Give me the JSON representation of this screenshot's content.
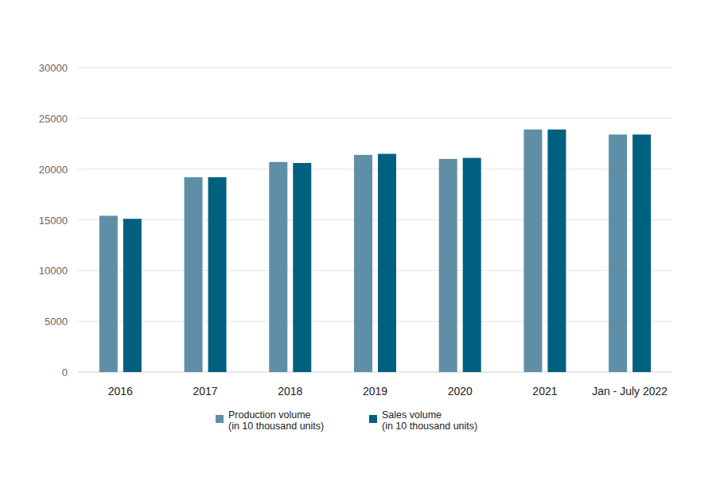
{
  "chart_data": {
    "type": "bar",
    "categories": [
      "2016",
      "2017",
      "2018",
      "2019",
      "2020",
      "2021",
      "Jan - July 2022"
    ],
    "series": [
      {
        "name": "Production volume\n(in 10 thousand units)",
        "color": "#5f8fa6",
        "values": [
          15400,
          19200,
          20700,
          21400,
          21000,
          23900,
          23400
        ]
      },
      {
        "name": "Sales volume\n(in 10 thousand units)",
        "color": "#00607f",
        "values": [
          15100,
          19200,
          20600,
          21500,
          21100,
          23900,
          23400
        ]
      }
    ],
    "ylim": [
      0,
      30000
    ],
    "yticks": [
      0,
      5000,
      10000,
      15000,
      20000,
      25000,
      30000
    ],
    "grid": true,
    "legend": "bottom"
  }
}
